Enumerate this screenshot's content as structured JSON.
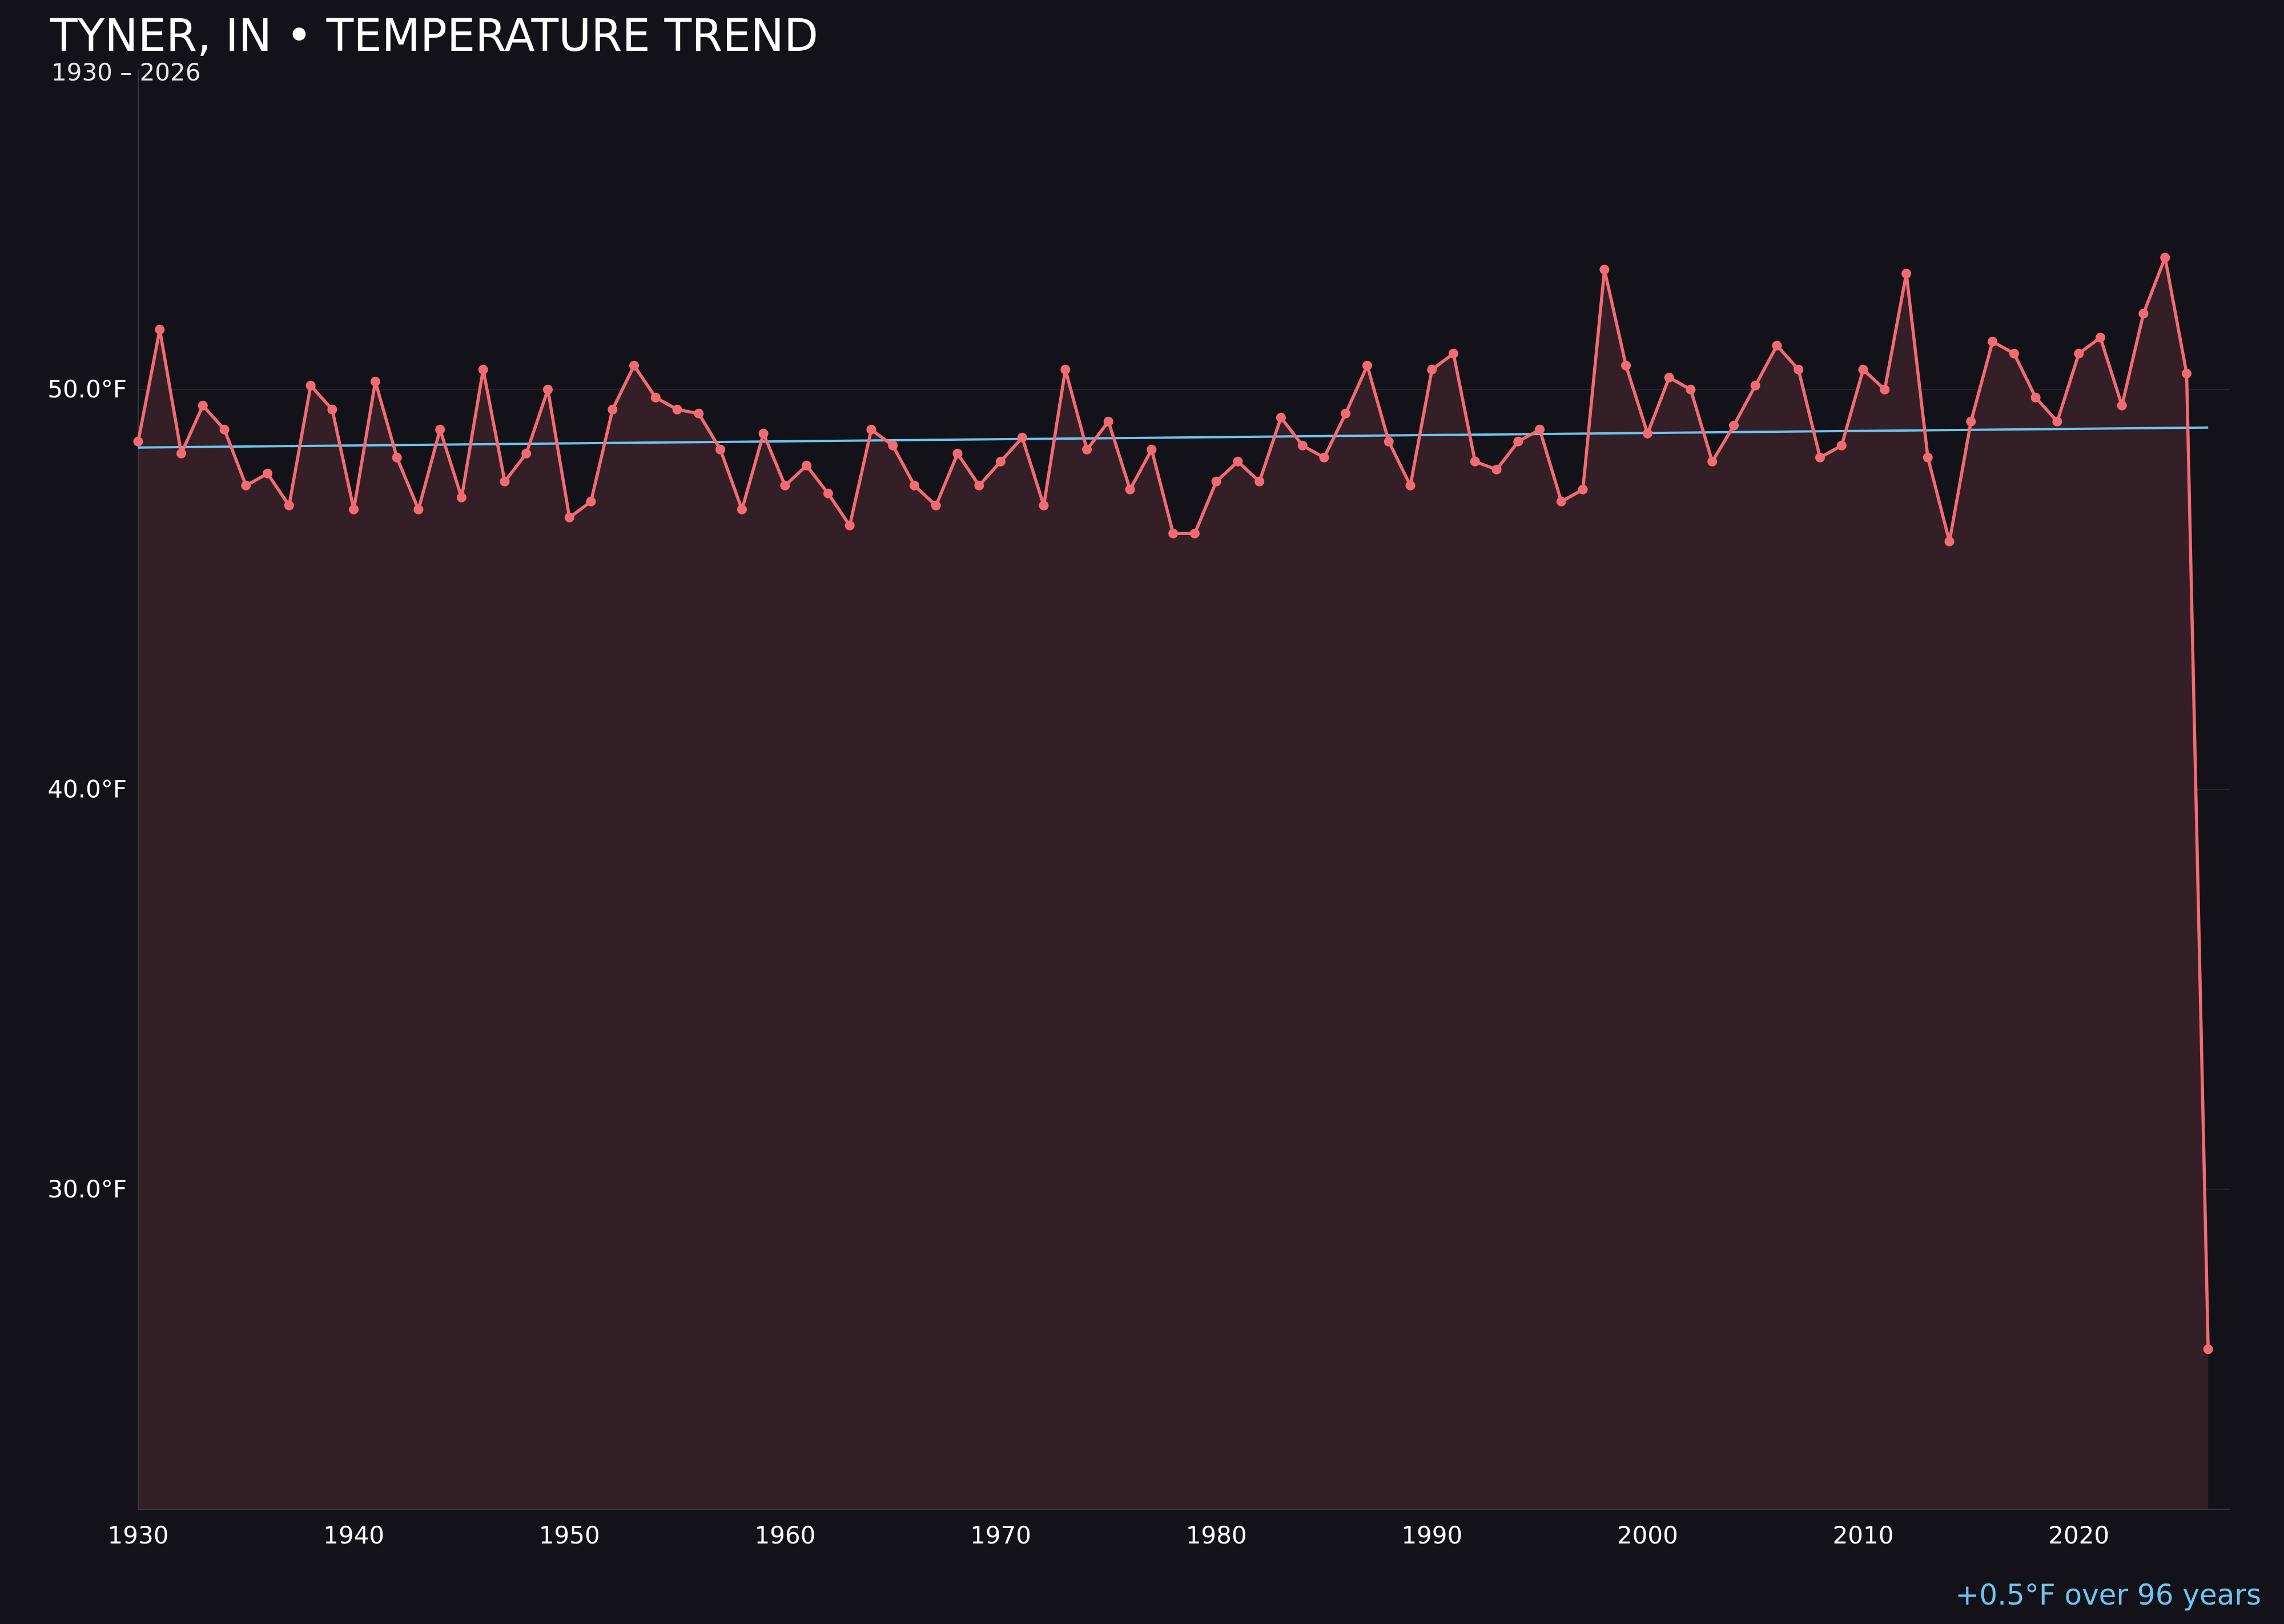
{
  "colors": {
    "background": "#131218",
    "series": "#f26b73",
    "fill": "#341f26",
    "trend": "#6bc5f2",
    "grid": "#262230",
    "axis": "#3a3642",
    "text": "#ffffff"
  },
  "chart_data": {
    "type": "line",
    "title": "TYNER, IN • TEMPERATURE TREND",
    "subtitle": "1930 – 2026",
    "xlabel": "",
    "ylabel": "",
    "xlim": [
      1930,
      2027
    ],
    "ylim": [
      22,
      58
    ],
    "grid": true,
    "x_ticks": [
      {
        "value": 1930,
        "label": "1930"
      },
      {
        "value": 1940,
        "label": "1940"
      },
      {
        "value": 1950,
        "label": "1950"
      },
      {
        "value": 1960,
        "label": "1960"
      },
      {
        "value": 1970,
        "label": "1970"
      },
      {
        "value": 1980,
        "label": "1980"
      },
      {
        "value": 1990,
        "label": "1990"
      },
      {
        "value": 2000,
        "label": "2000"
      },
      {
        "value": 2010,
        "label": "2010"
      },
      {
        "value": 2020,
        "label": "2020"
      }
    ],
    "y_ticks": [
      {
        "value": 30,
        "label": "30.0°F"
      },
      {
        "value": 40,
        "label": "40.0°F"
      },
      {
        "value": 50,
        "label": "50.0°F"
      }
    ],
    "series": [
      {
        "x": [
          1930,
          1931,
          1932,
          1933,
          1934,
          1935,
          1936,
          1937,
          1938,
          1939,
          1940,
          1941,
          1942,
          1943,
          1944,
          1945,
          1946,
          1947,
          1948,
          1949,
          1950,
          1951,
          1952,
          1953,
          1954,
          1955,
          1956,
          1957,
          1958,
          1959,
          1960,
          1961,
          1962,
          1963,
          1964,
          1965,
          1966,
          1967,
          1968,
          1969,
          1970,
          1971,
          1972,
          1973,
          1974,
          1975,
          1976,
          1977,
          1978,
          1979,
          1980,
          1981,
          1982,
          1983,
          1984,
          1985,
          1986,
          1987,
          1988,
          1989,
          1990,
          1991,
          1992,
          1993,
          1994,
          1995,
          1996,
          1997,
          1998,
          1999,
          2000,
          2001,
          2002,
          2003,
          2004,
          2005,
          2006,
          2007,
          2008,
          2009,
          2010,
          2011,
          2012,
          2013,
          2014,
          2015,
          2016,
          2017,
          2018,
          2019,
          2020,
          2021,
          2022,
          2023,
          2024,
          2025,
          2026
        ],
        "values": [
          48.7,
          51.5,
          48.4,
          49.6,
          49.0,
          47.6,
          47.9,
          47.1,
          50.1,
          49.5,
          47.0,
          50.2,
          48.3,
          47.0,
          49.0,
          47.3,
          50.5,
          47.7,
          48.4,
          50.0,
          46.8,
          47.2,
          49.5,
          50.6,
          49.8,
          49.5,
          49.4,
          48.5,
          47.0,
          48.9,
          47.6,
          48.1,
          47.4,
          46.6,
          49.0,
          48.6,
          47.6,
          47.1,
          48.4,
          47.6,
          48.2,
          48.8,
          47.1,
          50.5,
          48.5,
          49.2,
          47.5,
          48.5,
          46.4,
          46.4,
          47.7,
          48.2,
          47.7,
          49.3,
          48.6,
          48.3,
          49.4,
          50.6,
          48.7,
          47.6,
          50.5,
          50.9,
          48.2,
          48.0,
          48.7,
          49.0,
          47.2,
          47.5,
          53.0,
          50.6,
          48.9,
          50.3,
          50.0,
          48.2,
          49.1,
          50.1,
          51.1,
          50.5,
          48.3,
          48.6,
          50.5,
          50.0,
          52.9,
          48.3,
          46.2,
          49.2,
          51.2,
          50.9,
          49.8,
          49.2,
          50.9,
          51.3,
          49.6,
          51.9,
          53.3,
          50.4,
          26.0
        ]
      }
    ],
    "trend": {
      "x": [
        1930,
        2026
      ],
      "values": [
        48.55,
        49.05
      ],
      "annotation": "+0.5°F over 96 years"
    }
  }
}
